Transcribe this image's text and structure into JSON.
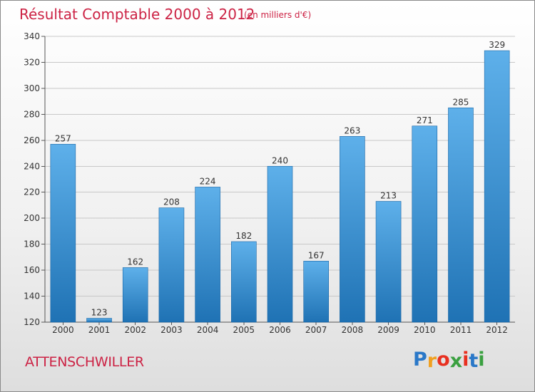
{
  "title": "Résultat Comptable 2000 à 2012",
  "subtitle": "(en milliers d'€)",
  "location": "ATTENSCHWILLER",
  "logo": {
    "letters": [
      "P",
      "r",
      "o",
      "x",
      "i",
      "t",
      "i"
    ],
    "colors": [
      "#2a78c8",
      "#f0a020",
      "#e83020",
      "#3aa040",
      "#e83020",
      "#2a78c8",
      "#3aa040"
    ]
  },
  "colors": {
    "bar_light": "#5eb0ea",
    "bar_dark": "#1f72b4",
    "title": "#cc2244",
    "grid": "#c8c8c8"
  },
  "chart_data": {
    "type": "bar",
    "title": "Résultat Comptable 2000 à 2012",
    "xlabel": "",
    "ylabel": "",
    "categories": [
      "2000",
      "2001",
      "2002",
      "2003",
      "2004",
      "2005",
      "2006",
      "2007",
      "2008",
      "2009",
      "2010",
      "2011",
      "2012"
    ],
    "values": [
      257,
      123,
      162,
      208,
      224,
      182,
      240,
      167,
      263,
      213,
      271,
      285,
      329
    ],
    "ylim": [
      120,
      340
    ],
    "yticks": [
      120,
      140,
      160,
      180,
      200,
      220,
      240,
      260,
      280,
      300,
      320,
      340
    ],
    "grid": true
  }
}
